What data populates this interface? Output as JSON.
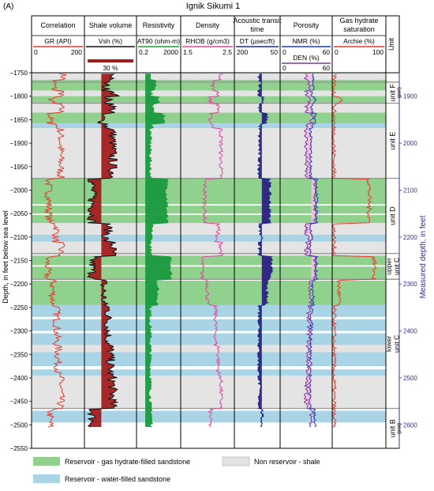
{
  "panel_label": "(A)",
  "title": "Ignik Sikumi 1",
  "y_axis_label": "Depth, in feet below sea level",
  "right_axis_label": "Measured depth, in feet",
  "unit_header": "Unit",
  "tracks": [
    {
      "title": "Correlation",
      "curve": "GR (API)",
      "min": "0",
      "max": "200",
      "color": "#e53b2c"
    },
    {
      "title": "Shale volume",
      "curve": "Vsh (%)",
      "min": "",
      "max": "",
      "color": "#111111",
      "cutoff_label": "30 %"
    },
    {
      "title": "Resistivity",
      "curve": "AT90 (ohm-m)",
      "min": "0.2",
      "max": "2000",
      "color": "#1f9a3a"
    },
    {
      "title": "Density",
      "curve": "RHOB (g/cm3)",
      "min": "1.5",
      "max": "2.5",
      "color": "#e0479a"
    },
    {
      "title": "Acoustic transit time",
      "curve": "DT (µsec/ft)",
      "min": "200",
      "max": "50",
      "color": "#1c2a8a"
    },
    {
      "title": "Porosity",
      "curve": "NMR (%)",
      "min": "0",
      "max": "60",
      "color": "#1f3fb0",
      "curve2": "DEN (%)",
      "min2": "0",
      "max2": "60",
      "color2": "#7a3aa0"
    },
    {
      "title": "Gas hydrate saturation",
      "curve": "Archie (%)",
      "min": "0",
      "max": "100",
      "color": "#e53b2c"
    }
  ],
  "depth_ticks": [
    -1750,
    -1800,
    -1850,
    -1900,
    -1950,
    -2000,
    -2050,
    -2100,
    -2150,
    -2200,
    -2250,
    -2300,
    -2350,
    -2400,
    -2450,
    -2500,
    -2550
  ],
  "md_ticks": [
    1900,
    2000,
    2100,
    2200,
    2300,
    2400,
    2500,
    2600
  ],
  "units": [
    {
      "name": "unit F",
      "sub": "(part)",
      "top": -1770,
      "base": -1815
    },
    {
      "name": "unit E",
      "sub": "",
      "top": -1815,
      "base": -1975
    },
    {
      "name": "unit D",
      "sub": "",
      "top": -1975,
      "base": -2135
    },
    {
      "name": "upper unit C",
      "sub": "",
      "top": -2135,
      "base": -2190
    },
    {
      "name": "lower unit C",
      "sub": "",
      "top": -2190,
      "base": -2465
    },
    {
      "name": "unit B",
      "sub": "(part)",
      "top": -2465,
      "base": -2550
    }
  ],
  "legend": {
    "hydrate": "Reservoir - gas hydrate-filled sandstone",
    "water": "Reservoir - water-filled sandstone",
    "shale": "Non reservoir - shale"
  },
  "colors": {
    "hydrate": "#8fd18d",
    "water": "#a9d4e6",
    "shale": "#e4e4e4",
    "boundary": "#9a9a9a",
    "vsh_fill": "#a31d1d",
    "res_fill": "#1a9a3e",
    "dt_fill": "#2e2080",
    "por_fill": "#f7bddc",
    "md_axis": "#3b2d8f"
  },
  "chart_data": {
    "type": "well-log",
    "y_range": [
      -1750,
      -2550
    ],
    "zones": [
      {
        "type": "shale",
        "top": -1750,
        "base": -1765
      },
      {
        "type": "hydrate",
        "top": -1765,
        "base": -1788
      },
      {
        "type": "shale",
        "top": -1788,
        "base": -1800
      },
      {
        "type": "hydrate",
        "top": -1800,
        "base": -1815
      },
      {
        "type": "shale",
        "top": -1815,
        "base": -1835
      },
      {
        "type": "hydrate",
        "top": -1835,
        "base": -1858
      },
      {
        "type": "water",
        "top": -1858,
        "base": -1868
      },
      {
        "type": "shale",
        "top": -1868,
        "base": -1975
      },
      {
        "type": "hydrate",
        "top": -1975,
        "base": -2030
      },
      {
        "type": "hydrate",
        "top": -2033,
        "base": -2050
      },
      {
        "type": "hydrate",
        "top": -2053,
        "base": -2070
      },
      {
        "type": "shale",
        "top": -2070,
        "base": -2095
      },
      {
        "type": "water",
        "top": -2095,
        "base": -2110
      },
      {
        "type": "shale",
        "top": -2110,
        "base": -2140
      },
      {
        "type": "hydrate",
        "top": -2140,
        "base": -2160
      },
      {
        "type": "hydrate",
        "top": -2163,
        "base": -2190
      },
      {
        "type": "hydrate",
        "top": -2193,
        "base": -2245
      },
      {
        "type": "water",
        "top": -2245,
        "base": -2270
      },
      {
        "type": "water",
        "top": -2275,
        "base": -2300
      },
      {
        "type": "water",
        "top": -2305,
        "base": -2330
      },
      {
        "type": "shale",
        "top": -2330,
        "base": -2345
      },
      {
        "type": "water",
        "top": -2345,
        "base": -2375
      },
      {
        "type": "water",
        "top": -2382,
        "base": -2395
      },
      {
        "type": "shale",
        "top": -2395,
        "base": -2465
      },
      {
        "type": "water",
        "top": -2470,
        "base": -2495
      }
    ],
    "boundaries": [
      -1770,
      -1815,
      -1975,
      -2135,
      -2190,
      -2465
    ],
    "intervals": [
      {
        "top": -1750,
        "base": -1765,
        "gr": 120,
        "vsh": 0.55,
        "res": 3,
        "rhob": 2.25,
        "dt": 120,
        "nmr": 38,
        "den": 30,
        "sh": 0
      },
      {
        "top": -1765,
        "base": -1788,
        "gr": 85,
        "vsh": 0.4,
        "res": 8,
        "rhob": 2.1,
        "dt": 115,
        "nmr": 38,
        "den": 34,
        "sh": 0
      },
      {
        "top": -1788,
        "base": -1800,
        "gr": 115,
        "vsh": 0.6,
        "res": 4,
        "rhob": 2.2,
        "dt": 120,
        "nmr": 36,
        "den": 30,
        "sh": 0
      },
      {
        "top": -1800,
        "base": -1815,
        "gr": 75,
        "vsh": 0.45,
        "res": 20,
        "rhob": 2.05,
        "dt": 105,
        "nmr": 40,
        "den": 34,
        "sh": 15
      },
      {
        "top": -1815,
        "base": -1835,
        "gr": 110,
        "vsh": 0.55,
        "res": 5,
        "rhob": 2.2,
        "dt": 118,
        "nmr": 36,
        "den": 30,
        "sh": 0
      },
      {
        "top": -1835,
        "base": -1858,
        "gr": 70,
        "vsh": 0.32,
        "res": 60,
        "rhob": 2.05,
        "dt": 95,
        "nmr": 40,
        "den": 36,
        "sh": 0
      },
      {
        "top": -1858,
        "base": -1868,
        "gr": 95,
        "vsh": 0.42,
        "res": 5,
        "rhob": 2.1,
        "dt": 115,
        "nmr": 37,
        "den": 32,
        "sh": 0
      },
      {
        "top": -1868,
        "base": -1975,
        "gr": 110,
        "vsh": 0.55,
        "res": 3,
        "rhob": 2.25,
        "dt": 118,
        "nmr": 35,
        "den": 30,
        "sh": 0
      },
      {
        "top": -1975,
        "base": -2070,
        "gr": 65,
        "vsh": 0.1,
        "res": 120,
        "rhob": 1.95,
        "dt": 85,
        "nmr": 42,
        "den": 40,
        "sh": 70
      },
      {
        "top": -2070,
        "base": -2095,
        "gr": 95,
        "vsh": 0.45,
        "res": 4,
        "rhob": 2.2,
        "dt": 115,
        "nmr": 35,
        "den": 30,
        "sh": 0
      },
      {
        "top": -2095,
        "base": -2110,
        "gr": 90,
        "vsh": 0.4,
        "res": 4,
        "rhob": 2.15,
        "dt": 110,
        "nmr": 36,
        "den": 32,
        "sh": 0
      },
      {
        "top": -2110,
        "base": -2140,
        "gr": 110,
        "vsh": 0.55,
        "res": 3,
        "rhob": 2.25,
        "dt": 118,
        "nmr": 34,
        "den": 30,
        "sh": 0
      },
      {
        "top": -2140,
        "base": -2190,
        "gr": 60,
        "vsh": 0.1,
        "res": 300,
        "rhob": 1.9,
        "dt": 80,
        "nmr": 42,
        "den": 40,
        "sh": 80
      },
      {
        "top": -2190,
        "base": -2245,
        "gr": 80,
        "vsh": 0.35,
        "res": 15,
        "rhob": 2.0,
        "dt": 95,
        "nmr": 38,
        "den": 35,
        "sh": 10
      },
      {
        "top": -2245,
        "base": -2330,
        "gr": 95,
        "vsh": 0.45,
        "res": 3,
        "rhob": 2.15,
        "dt": 118,
        "nmr": 36,
        "den": 33,
        "sh": 0
      },
      {
        "top": -2330,
        "base": -2395,
        "gr": 100,
        "vsh": 0.5,
        "res": 3,
        "rhob": 2.2,
        "dt": 120,
        "nmr": 35,
        "den": 32,
        "sh": 0
      },
      {
        "top": -2395,
        "base": -2465,
        "gr": 110,
        "vsh": 0.55,
        "res": 3,
        "rhob": 2.25,
        "dt": 118,
        "nmr": 34,
        "den": 30,
        "sh": 0
      },
      {
        "top": -2465,
        "base": -2510,
        "gr": 70,
        "vsh": 0.1,
        "res": 4,
        "rhob": 2.05,
        "dt": 110,
        "nmr": 40,
        "den": 36,
        "sh": 0
      }
    ]
  }
}
